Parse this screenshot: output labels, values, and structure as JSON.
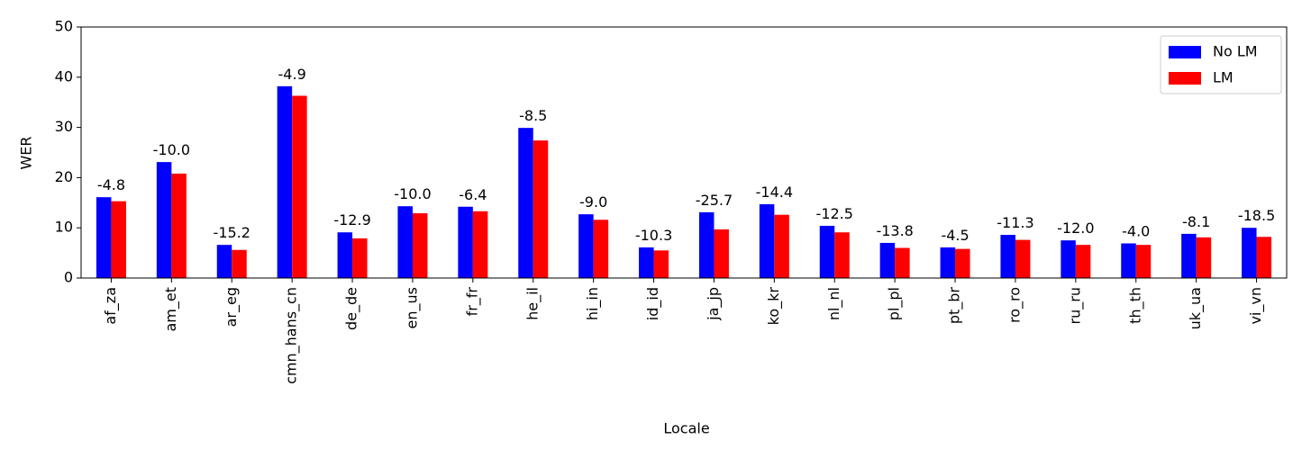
{
  "chart_data": {
    "type": "bar",
    "xlabel": "Locale",
    "ylabel": "WER",
    "categories": [
      "af_za",
      "am_et",
      "ar_eg",
      "cmn_hans_cn",
      "de_de",
      "en_us",
      "fr_fr",
      "he_il",
      "hi_in",
      "id_id",
      "ja_jp",
      "ko_kr",
      "nl_nl",
      "pl_pl",
      "pt_br",
      "ro_ro",
      "ru_ru",
      "th_th",
      "uk_ua",
      "vi_vn"
    ],
    "series": [
      {
        "name": "No LM",
        "color": "#0000ff",
        "values": [
          16.1,
          23.1,
          6.6,
          38.2,
          9.1,
          14.3,
          14.2,
          29.9,
          12.7,
          6.1,
          13.1,
          14.7,
          10.4,
          7.0,
          6.1,
          8.6,
          7.5,
          6.9,
          8.8,
          10.0
        ]
      },
      {
        "name": "LM",
        "color": "#ff0000",
        "values": [
          15.3,
          20.8,
          5.6,
          36.3,
          7.9,
          12.9,
          13.3,
          27.4,
          11.6,
          5.5,
          9.7,
          12.6,
          9.1,
          6.0,
          5.8,
          7.6,
          6.6,
          6.6,
          8.1,
          8.2
        ]
      }
    ],
    "annotations": [
      "-4.8",
      "-10.0",
      "-15.2",
      "-4.9",
      "-12.9",
      "-10.0",
      "-6.4",
      "-8.5",
      "-9.0",
      "-10.3",
      "-25.7",
      "-14.4",
      "-12.5",
      "-13.8",
      "-4.5",
      "-11.3",
      "-12.0",
      "-4.0",
      "-8.1",
      "-18.5"
    ],
    "ylim": [
      0,
      50
    ],
    "yticks": [
      0,
      10,
      20,
      30,
      40,
      50
    ],
    "legend": "upper right"
  }
}
